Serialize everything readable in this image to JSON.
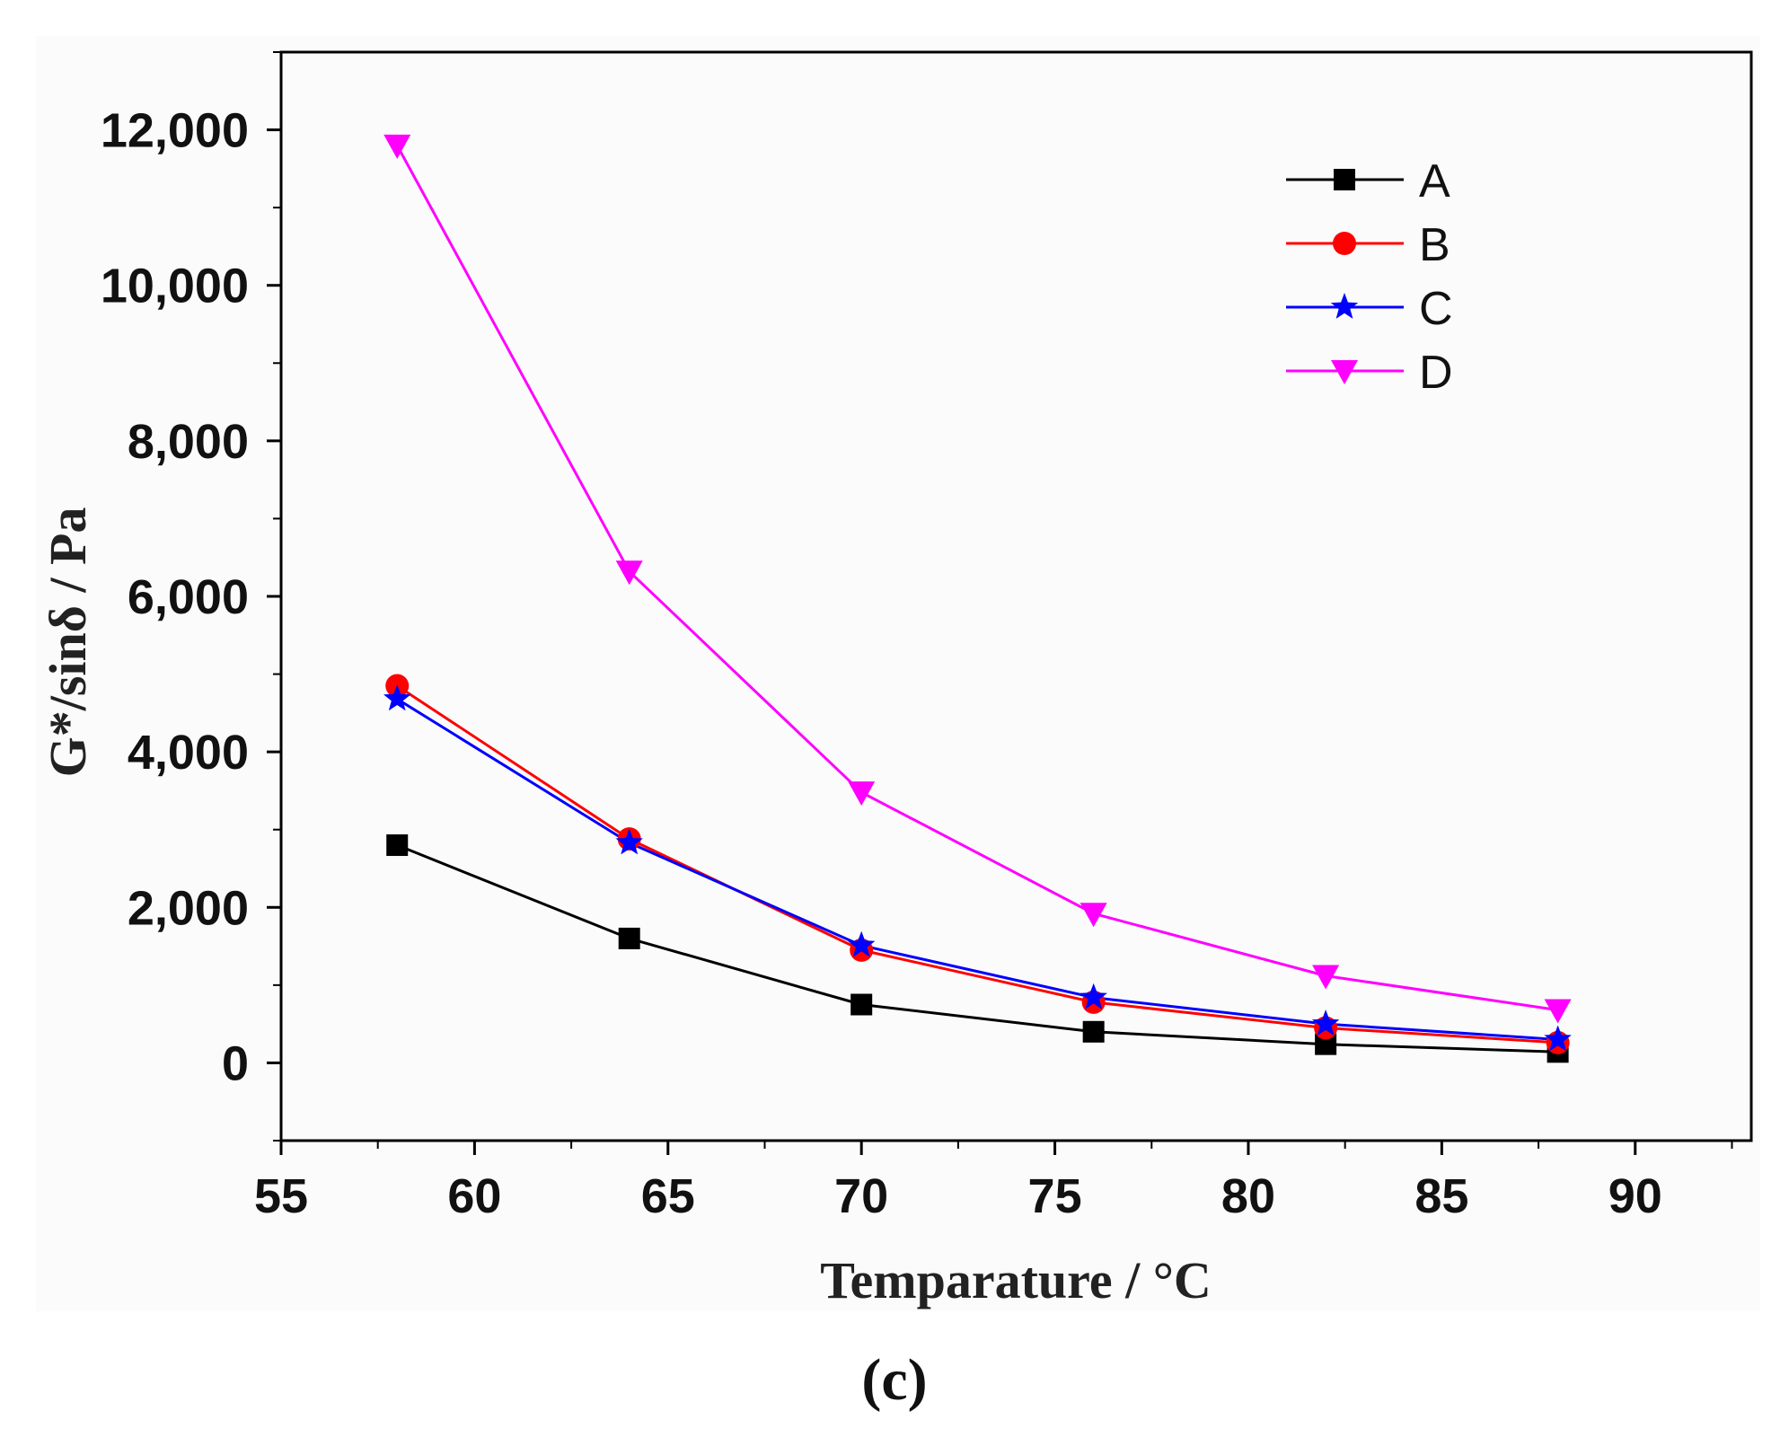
{
  "chart_data": {
    "type": "line",
    "title": "",
    "xlabel": "Temparature / °C",
    "ylabel": "G*/sinδ / Pa",
    "xlim": [
      55,
      93
    ],
    "ylim": [
      -1000,
      13000
    ],
    "x_ticks": [
      55,
      60,
      65,
      70,
      75,
      80,
      85,
      90
    ],
    "y_ticks": [
      0,
      2000,
      4000,
      6000,
      8000,
      10000,
      12000
    ],
    "x_tick_labels": [
      "55",
      "60",
      "65",
      "70",
      "75",
      "80",
      "85",
      "90"
    ],
    "y_tick_labels": [
      "0",
      "2,000",
      "4,000",
      "6,000",
      "8,000",
      "10,000",
      "12,000"
    ],
    "x": [
      58,
      64,
      70,
      76,
      82,
      88
    ],
    "series": [
      {
        "name": "A",
        "color": "#000000",
        "marker": "square",
        "values": [
          2800,
          1600,
          750,
          400,
          240,
          140
        ]
      },
      {
        "name": "B",
        "color": "#ff0000",
        "marker": "circle",
        "values": [
          4850,
          2880,
          1450,
          780,
          450,
          260
        ]
      },
      {
        "name": "C",
        "color": "#0000ff",
        "marker": "star",
        "values": [
          4680,
          2830,
          1510,
          840,
          500,
          300
        ]
      },
      {
        "name": "D",
        "color": "#ff00ff",
        "marker": "triangle-down",
        "values": [
          11800,
          6320,
          3480,
          1920,
          1120,
          680
        ]
      }
    ],
    "legend_position": "top-right",
    "grid": false
  },
  "caption": "(c)"
}
